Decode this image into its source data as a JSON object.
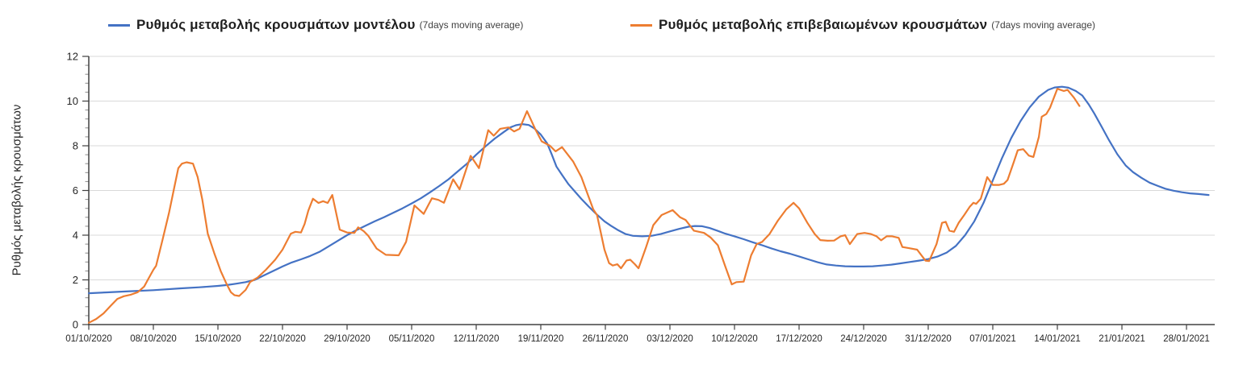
{
  "legend": {
    "model": {
      "label": "Ρυθμός μεταβολής κρουσμάτων μοντέλου",
      "suffix": "(7days moving average)"
    },
    "confirmed": {
      "label": "Ρυθμός μεταβολής επιβεβαιωμένων κρουσμάτων",
      "suffix": "(7days moving average)"
    }
  },
  "y_axis": {
    "title": "Ρυθμός μεταβολής κρουσμάτων"
  },
  "colors": {
    "model": "#4472C4",
    "confirmed": "#ED7D31",
    "grid": "#D9D9D9",
    "axis": "#404040",
    "minor_tick": "#8c8c8c",
    "text": "#262626"
  },
  "chart_data": {
    "type": "line",
    "title": "",
    "xlabel": "",
    "ylabel": "Ρυθμός μεταβολής κρουσμάτων",
    "ylim": [
      0,
      12
    ],
    "y_ticks": [
      0,
      2,
      4,
      6,
      8,
      10,
      12
    ],
    "y_minor_step": 0.4,
    "grid": true,
    "legend_position": "top",
    "x_unit": "days since 01/10/2020",
    "xlim_days": [
      0,
      122
    ],
    "x_tick_days": [
      0,
      7,
      14,
      21,
      28,
      35,
      42,
      49,
      56,
      63,
      70,
      77,
      84,
      91,
      98,
      105,
      112,
      119
    ],
    "x_tick_labels": [
      "01/10/2020",
      "08/10/2020",
      "15/10/2020",
      "22/10/2020",
      "29/10/2020",
      "05/11/2020",
      "12/11/2020",
      "19/11/2020",
      "26/11/2020",
      "03/12/2020",
      "10/12/2020",
      "17/12/2020",
      "24/12/2020",
      "31/12/2020",
      "07/01/2021",
      "14/01/2021",
      "21/01/2021",
      "28/01/2021"
    ],
    "series": [
      {
        "key": "model",
        "name": "Ρυθμός μεταβολής κρουσμάτων μοντέλου (7days moving average)",
        "color": "#4472C4",
        "points": [
          [
            0,
            1.4
          ],
          [
            2,
            1.44
          ],
          [
            4,
            1.48
          ],
          [
            7,
            1.54
          ],
          [
            10,
            1.62
          ],
          [
            12,
            1.67
          ],
          [
            14,
            1.73
          ],
          [
            15,
            1.77
          ],
          [
            16,
            1.83
          ],
          [
            17,
            1.9
          ],
          [
            18,
            2.0
          ],
          [
            19,
            2.2
          ],
          [
            20,
            2.4
          ],
          [
            21,
            2.6
          ],
          [
            22,
            2.78
          ],
          [
            23,
            2.92
          ],
          [
            24,
            3.07
          ],
          [
            25,
            3.25
          ],
          [
            26,
            3.5
          ],
          [
            27,
            3.75
          ],
          [
            28,
            4.0
          ],
          [
            29,
            4.22
          ],
          [
            30,
            4.42
          ],
          [
            31,
            4.62
          ],
          [
            32,
            4.8
          ],
          [
            33,
            5.0
          ],
          [
            34,
            5.2
          ],
          [
            35,
            5.42
          ],
          [
            36,
            5.65
          ],
          [
            37,
            5.92
          ],
          [
            38,
            6.2
          ],
          [
            39,
            6.5
          ],
          [
            40,
            6.85
          ],
          [
            41,
            7.2
          ],
          [
            42,
            7.6
          ],
          [
            43,
            7.97
          ],
          [
            44,
            8.32
          ],
          [
            45,
            8.62
          ],
          [
            45.7,
            8.82
          ],
          [
            46.3,
            8.92
          ],
          [
            47,
            8.97
          ],
          [
            47.7,
            8.93
          ],
          [
            48.3,
            8.78
          ],
          [
            49,
            8.5
          ],
          [
            49.7,
            8.1
          ],
          [
            50.2,
            7.6
          ],
          [
            50.7,
            7.07
          ],
          [
            51.3,
            6.7
          ],
          [
            52,
            6.28
          ],
          [
            52.7,
            5.95
          ],
          [
            53.4,
            5.62
          ],
          [
            54.2,
            5.28
          ],
          [
            55,
            4.95
          ],
          [
            55.9,
            4.62
          ],
          [
            56.6,
            4.42
          ],
          [
            57.4,
            4.22
          ],
          [
            58.2,
            4.05
          ],
          [
            59,
            3.97
          ],
          [
            60,
            3.95
          ],
          [
            61,
            3.97
          ],
          [
            62,
            4.05
          ],
          [
            63,
            4.17
          ],
          [
            64,
            4.28
          ],
          [
            65,
            4.38
          ],
          [
            65.7,
            4.41
          ],
          [
            66.5,
            4.4
          ],
          [
            67.3,
            4.32
          ],
          [
            68.2,
            4.19
          ],
          [
            69,
            4.07
          ],
          [
            70,
            3.95
          ],
          [
            71,
            3.82
          ],
          [
            72,
            3.68
          ],
          [
            73,
            3.55
          ],
          [
            74,
            3.41
          ],
          [
            75,
            3.28
          ],
          [
            76,
            3.17
          ],
          [
            77,
            3.05
          ],
          [
            78,
            2.92
          ],
          [
            79,
            2.79
          ],
          [
            80,
            2.69
          ],
          [
            81,
            2.64
          ],
          [
            82,
            2.61
          ],
          [
            83,
            2.6
          ],
          [
            84,
            2.6
          ],
          [
            85,
            2.61
          ],
          [
            86,
            2.64
          ],
          [
            87,
            2.68
          ],
          [
            88,
            2.74
          ],
          [
            89,
            2.8
          ],
          [
            90,
            2.86
          ],
          [
            91,
            2.93
          ],
          [
            92,
            3.04
          ],
          [
            93,
            3.22
          ],
          [
            94,
            3.52
          ],
          [
            95,
            4.0
          ],
          [
            96,
            4.62
          ],
          [
            97,
            5.45
          ],
          [
            98,
            6.45
          ],
          [
            99,
            7.45
          ],
          [
            100,
            8.35
          ],
          [
            101,
            9.1
          ],
          [
            102,
            9.72
          ],
          [
            103,
            10.2
          ],
          [
            104,
            10.5
          ],
          [
            104.7,
            10.61
          ],
          [
            105.5,
            10.64
          ],
          [
            106.2,
            10.6
          ],
          [
            107,
            10.45
          ],
          [
            107.7,
            10.25
          ],
          [
            108.4,
            9.85
          ],
          [
            109,
            9.45
          ],
          [
            109.8,
            8.85
          ],
          [
            110.6,
            8.25
          ],
          [
            111.5,
            7.62
          ],
          [
            112.4,
            7.12
          ],
          [
            113.2,
            6.82
          ],
          [
            114.1,
            6.57
          ],
          [
            115,
            6.35
          ],
          [
            115.9,
            6.2
          ],
          [
            116.7,
            6.08
          ],
          [
            117.6,
            5.99
          ],
          [
            118.5,
            5.92
          ],
          [
            119.4,
            5.87
          ],
          [
            120.3,
            5.84
          ],
          [
            121.4,
            5.8
          ]
        ]
      },
      {
        "key": "confirmed",
        "name": "Ρυθμός μεταβολής επιβεβαιωμένων κρουσμάτων (7days moving average)",
        "color": "#ED7D31",
        "points": [
          [
            0,
            0.08
          ],
          [
            0.8,
            0.25
          ],
          [
            1.6,
            0.5
          ],
          [
            2.4,
            0.85
          ],
          [
            3.1,
            1.15
          ],
          [
            3.8,
            1.27
          ],
          [
            4.5,
            1.33
          ],
          [
            5.3,
            1.45
          ],
          [
            6,
            1.7
          ],
          [
            6.4,
            2.0
          ],
          [
            7,
            2.45
          ],
          [
            7.3,
            2.63
          ],
          [
            8,
            3.8
          ],
          [
            8.7,
            5.0
          ],
          [
            9.3,
            6.2
          ],
          [
            9.7,
            7.0
          ],
          [
            10.1,
            7.2
          ],
          [
            10.6,
            7.26
          ],
          [
            11.3,
            7.2
          ],
          [
            11.8,
            6.6
          ],
          [
            12.3,
            5.6
          ],
          [
            12.9,
            4.07
          ],
          [
            13.6,
            3.2
          ],
          [
            14.3,
            2.4
          ],
          [
            14.9,
            1.85
          ],
          [
            15.4,
            1.45
          ],
          [
            15.8,
            1.31
          ],
          [
            16.3,
            1.28
          ],
          [
            17,
            1.55
          ],
          [
            17.5,
            1.91
          ],
          [
            18.3,
            2.1
          ],
          [
            19.2,
            2.45
          ],
          [
            20.2,
            2.9
          ],
          [
            21,
            3.35
          ],
          [
            21.9,
            4.07
          ],
          [
            22.4,
            4.15
          ],
          [
            23,
            4.12
          ],
          [
            23.4,
            4.5
          ],
          [
            23.8,
            5.1
          ],
          [
            24.3,
            5.63
          ],
          [
            24.9,
            5.44
          ],
          [
            25.4,
            5.52
          ],
          [
            25.9,
            5.44
          ],
          [
            26.4,
            5.8
          ],
          [
            27.2,
            4.25
          ],
          [
            28,
            4.12
          ],
          [
            28.8,
            4.1
          ],
          [
            29.2,
            4.35
          ],
          [
            29.8,
            4.18
          ],
          [
            30.3,
            3.97
          ],
          [
            31.2,
            3.4
          ],
          [
            32.2,
            3.12
          ],
          [
            33.6,
            3.1
          ],
          [
            34.4,
            3.7
          ],
          [
            35.3,
            5.33
          ],
          [
            36.3,
            4.95
          ],
          [
            37.2,
            5.65
          ],
          [
            37.9,
            5.58
          ],
          [
            38.5,
            5.45
          ],
          [
            39.5,
            6.5
          ],
          [
            40.2,
            6.05
          ],
          [
            41.4,
            7.55
          ],
          [
            42.3,
            7.0
          ],
          [
            43.3,
            8.7
          ],
          [
            43.9,
            8.45
          ],
          [
            44.6,
            8.76
          ],
          [
            45.5,
            8.82
          ],
          [
            46.1,
            8.64
          ],
          [
            46.7,
            8.76
          ],
          [
            47.5,
            9.55
          ],
          [
            48.4,
            8.75
          ],
          [
            49.1,
            8.2
          ],
          [
            50,
            8.0
          ],
          [
            50.6,
            7.75
          ],
          [
            51.3,
            7.94
          ],
          [
            52.5,
            7.3
          ],
          [
            53.4,
            6.6
          ],
          [
            54.2,
            5.7
          ],
          [
            54.7,
            5.15
          ],
          [
            55.1,
            4.9
          ],
          [
            55.9,
            3.35
          ],
          [
            56.4,
            2.75
          ],
          [
            56.8,
            2.64
          ],
          [
            57.3,
            2.7
          ],
          [
            57.7,
            2.52
          ],
          [
            58.3,
            2.87
          ],
          [
            58.7,
            2.9
          ],
          [
            59.2,
            2.7
          ],
          [
            59.6,
            2.52
          ],
          [
            60.4,
            3.45
          ],
          [
            61.2,
            4.45
          ],
          [
            62.1,
            4.9
          ],
          [
            63.3,
            5.12
          ],
          [
            64.1,
            4.8
          ],
          [
            64.7,
            4.68
          ],
          [
            65.6,
            4.2
          ],
          [
            66.7,
            4.1
          ],
          [
            67.4,
            3.9
          ],
          [
            68.2,
            3.55
          ],
          [
            69,
            2.6
          ],
          [
            69.7,
            1.8
          ],
          [
            70.2,
            1.9
          ],
          [
            71,
            1.92
          ],
          [
            71.8,
            3.1
          ],
          [
            72.4,
            3.6
          ],
          [
            73,
            3.7
          ],
          [
            73.8,
            4.05
          ],
          [
            74.7,
            4.65
          ],
          [
            75.6,
            5.15
          ],
          [
            76.4,
            5.45
          ],
          [
            77,
            5.2
          ],
          [
            77.9,
            4.55
          ],
          [
            78.7,
            4.05
          ],
          [
            79.3,
            3.78
          ],
          [
            80.1,
            3.75
          ],
          [
            80.8,
            3.76
          ],
          [
            81.5,
            3.95
          ],
          [
            82,
            4.0
          ],
          [
            82.5,
            3.6
          ],
          [
            83.3,
            4.05
          ],
          [
            84.1,
            4.1
          ],
          [
            84.8,
            4.05
          ],
          [
            85.4,
            3.95
          ],
          [
            85.9,
            3.77
          ],
          [
            86.5,
            3.95
          ],
          [
            87.1,
            3.95
          ],
          [
            87.8,
            3.88
          ],
          [
            88.2,
            3.47
          ],
          [
            88.9,
            3.42
          ],
          [
            89.8,
            3.35
          ],
          [
            90.7,
            2.86
          ],
          [
            91.1,
            2.84
          ],
          [
            91.9,
            3.6
          ],
          [
            92.5,
            4.55
          ],
          [
            92.9,
            4.6
          ],
          [
            93.3,
            4.2
          ],
          [
            93.8,
            4.15
          ],
          [
            94.3,
            4.55
          ],
          [
            94.9,
            4.9
          ],
          [
            95.5,
            5.27
          ],
          [
            95.9,
            5.45
          ],
          [
            96.2,
            5.4
          ],
          [
            96.7,
            5.63
          ],
          [
            97.4,
            6.6
          ],
          [
            98,
            6.25
          ],
          [
            98.7,
            6.25
          ],
          [
            99.2,
            6.3
          ],
          [
            99.6,
            6.47
          ],
          [
            100.3,
            7.3
          ],
          [
            100.7,
            7.8
          ],
          [
            101.3,
            7.85
          ],
          [
            101.9,
            7.56
          ],
          [
            102.4,
            7.5
          ],
          [
            103,
            8.4
          ],
          [
            103.3,
            9.3
          ],
          [
            103.8,
            9.42
          ],
          [
            104.2,
            9.7
          ],
          [
            105,
            10.55
          ],
          [
            105.7,
            10.45
          ],
          [
            106.1,
            10.5
          ],
          [
            106.8,
            10.15
          ],
          [
            107.4,
            9.78
          ]
        ]
      }
    ]
  }
}
